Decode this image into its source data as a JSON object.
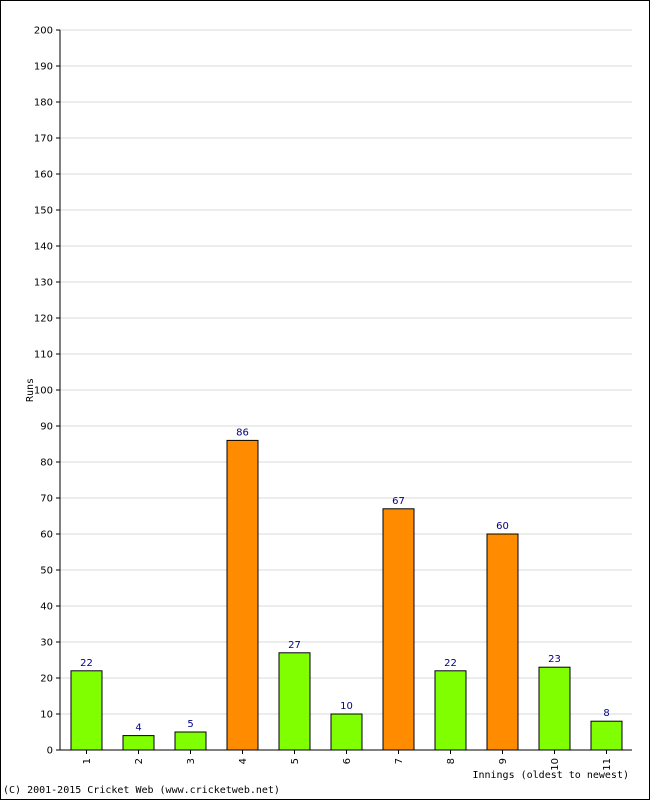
{
  "chart_data": {
    "type": "bar",
    "categories": [
      "1",
      "2",
      "3",
      "4",
      "5",
      "6",
      "7",
      "8",
      "9",
      "10",
      "11"
    ],
    "values": [
      22,
      4,
      5,
      86,
      27,
      10,
      67,
      22,
      60,
      23,
      8
    ],
    "bar_colors": [
      "#80ff00",
      "#80ff00",
      "#80ff00",
      "#ff8c00",
      "#80ff00",
      "#80ff00",
      "#ff8c00",
      "#80ff00",
      "#ff8c00",
      "#80ff00",
      "#80ff00"
    ],
    "title": "",
    "xlabel": "Innings (oldest to newest)",
    "ylabel": "Runs",
    "ylim": [
      0,
      200
    ],
    "ytick_step": 10,
    "grid": true,
    "data_labels": true
  },
  "colors": {
    "fifty_plus_bar": "#ff8c00",
    "normal_bar": "#80ff00",
    "data_label": "#000080",
    "gridline": "#d8d8d8"
  },
  "footer": {
    "copyright": "(C) 2001-2015 Cricket Web (www.cricketweb.net)"
  }
}
